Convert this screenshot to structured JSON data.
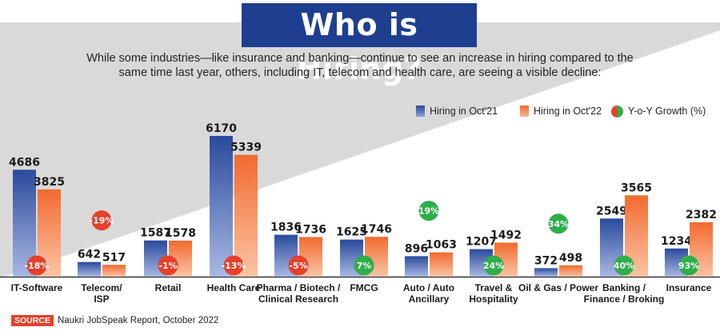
{
  "header": {
    "title": "Who is Hiring?",
    "subtitle_line1": "While some industries—like insurance and banking—continue to see an increase in hiring compared to the",
    "subtitle_line2": "same time last year, others, including IT, telecom and health care, are seeing a visible decline:"
  },
  "legend": {
    "oct21": "Hiring in Oct'21",
    "oct22": "Hiring in Oct'22",
    "growth": "Y-o-Y Growth (%)"
  },
  "source": {
    "tag": "SOURCE",
    "text": "Naukri JobSpeak Report, October 2022"
  },
  "colors": {
    "oct21": "#2a4a9c",
    "oct22": "#f26a2e",
    "growth_negative": "#e8402a",
    "growth_positive": "#2eae4a",
    "title_bg": "#1e3f8f"
  },
  "chart_data": {
    "type": "bar",
    "categories": [
      [
        "IT-Software"
      ],
      [
        "Telecom/",
        "ISP"
      ],
      [
        "Retail"
      ],
      [
        "Health Care"
      ],
      [
        "Pharma / Biotech /",
        "Clinical Research"
      ],
      [
        "FMCG"
      ],
      [
        "Auto / Auto",
        "Ancillary"
      ],
      [
        "Travel &",
        "Hospitality"
      ],
      [
        "Oil & Gas / Power"
      ],
      [
        "Banking /",
        "Finance / Broking"
      ],
      [
        "Insurance"
      ]
    ],
    "series": [
      {
        "name": "Hiring in Oct'21",
        "values": [
          4686,
          642,
          1587,
          6170,
          1836,
          1625,
          896,
          1207,
          372,
          2549,
          1234
        ]
      },
      {
        "name": "Hiring in Oct'22",
        "values": [
          3825,
          517,
          1578,
          5339,
          1736,
          1746,
          1063,
          1492,
          498,
          3565,
          2382
        ]
      }
    ],
    "growth_labels": [
      "-18%",
      "-19%",
      "-1%",
      "-13%",
      "-5%",
      "7%",
      "19%",
      "24%",
      "34%",
      "40%",
      "93%"
    ],
    "growth_values": [
      -18,
      -19,
      -1,
      -13,
      -5,
      7,
      19,
      24,
      34,
      40,
      93
    ],
    "ylim": [
      0,
      6170
    ]
  }
}
